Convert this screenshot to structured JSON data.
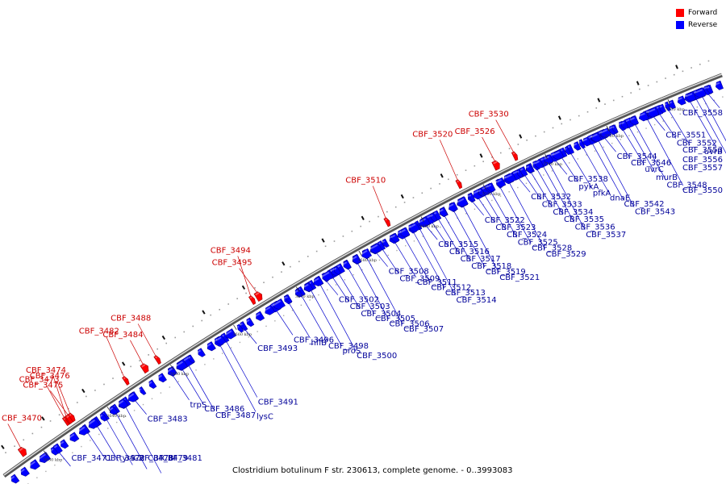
{
  "legend": {
    "forward_label": "Forward",
    "reverse_label": "Reverse",
    "forward_color": "#ff0000",
    "reverse_color": "#0000ff"
  },
  "caption": "Clostridium botulinum F str. 230613, complete genome. - 0..3993083",
  "track_colors": {
    "backbone": "#888888",
    "leader": "#0000cc",
    "leader_fwd": "#cc0000"
  },
  "ticks": [
    {
      "label": "3630 kbp",
      "pos_kbp": 3630
    },
    {
      "label": "3640 kbp",
      "pos_kbp": 3640
    },
    {
      "label": "3650 kbp",
      "pos_kbp": 3650
    },
    {
      "label": "3660 kbp",
      "pos_kbp": 3660
    },
    {
      "label": "3670 kbp",
      "pos_kbp": 3670
    },
    {
      "label": "3680 kbp",
      "pos_kbp": 3680
    },
    {
      "label": "3690 kbp",
      "pos_kbp": 3690
    },
    {
      "label": "3700 kbp",
      "pos_kbp": 3700
    },
    {
      "label": "3710 kbp",
      "pos_kbp": 3710
    },
    {
      "label": "3720 kbp",
      "pos_kbp": 3720
    },
    {
      "label": "3730 kbp",
      "pos_kbp": 3730
    }
  ],
  "forward_genes": [
    {
      "label": "CBF_3470",
      "pos_kbp": 3627.8
    },
    {
      "label": "CBF_3473",
      "pos_kbp": 3634.6
    },
    {
      "label": "CBF_3474",
      "pos_kbp": 3634.9
    },
    {
      "label": "CBF_3475",
      "pos_kbp": 3635.2
    },
    {
      "label": "CBF_3476",
      "pos_kbp": 3635.5
    },
    {
      "label": "CBF_3482",
      "pos_kbp": 3644.0
    },
    {
      "label": "CBF_3484",
      "pos_kbp": 3647.0
    },
    {
      "label": "CBF_3488",
      "pos_kbp": 3649.0
    },
    {
      "label": "CBF_3494",
      "pos_kbp": 3664.0
    },
    {
      "label": "CBF_3495",
      "pos_kbp": 3665.0
    },
    {
      "label": "CBF_3510",
      "pos_kbp": 3685.5
    },
    {
      "label": "CBF_3520",
      "pos_kbp": 3697.0
    },
    {
      "label": "CBF_3526",
      "pos_kbp": 3703.0
    },
    {
      "label": "CBF_3530",
      "pos_kbp": 3706.0
    }
  ],
  "reverse_genes": [
    {
      "label": "CBF_3471",
      "pos_kbp": 3631.5
    },
    {
      "label": "CBF_3472",
      "pos_kbp": 3636.0
    },
    {
      "label": "tyrS-2",
      "pos_kbp": 3637.5
    },
    {
      "label": "CBF_3478",
      "pos_kbp": 3639.0
    },
    {
      "label": "CBF_3479",
      "pos_kbp": 3640.5
    },
    {
      "label": "CBF_3481",
      "pos_kbp": 3642.0
    },
    {
      "label": "CBF_3483",
      "pos_kbp": 3643.5
    },
    {
      "label": "trpS",
      "pos_kbp": 3649.5
    },
    {
      "label": "CBF_3486",
      "pos_kbp": 3651.0
    },
    {
      "label": "CBF_3487",
      "pos_kbp": 3652.0
    },
    {
      "label": "CBF_3491",
      "pos_kbp": 3658.0
    },
    {
      "label": "lysC",
      "pos_kbp": 3657.0
    },
    {
      "label": "CBF_3493",
      "pos_kbp": 3661.0
    },
    {
      "label": "CBF_3496",
      "pos_kbp": 3666.0
    },
    {
      "label": "hflB",
      "pos_kbp": 3668.0
    },
    {
      "label": "CBF_3498",
      "pos_kbp": 3670.0
    },
    {
      "label": "proS",
      "pos_kbp": 3671.5
    },
    {
      "label": "CBF_3500",
      "pos_kbp": 3673.0
    },
    {
      "label": "CBF_3502",
      "pos_kbp": 3674.0
    },
    {
      "label": "CBF_3503",
      "pos_kbp": 3675.0
    },
    {
      "label": "CBF_3504",
      "pos_kbp": 3676.0
    },
    {
      "label": "CBF_3505",
      "pos_kbp": 3677.5
    },
    {
      "label": "CBF_3506",
      "pos_kbp": 3679.0
    },
    {
      "label": "CBF_3507",
      "pos_kbp": 3680.5
    },
    {
      "label": "CBF_3508",
      "pos_kbp": 3682.0
    },
    {
      "label": "CBF_3509",
      "pos_kbp": 3683.0
    },
    {
      "label": "CBF_3511",
      "pos_kbp": 3685.0
    },
    {
      "label": "CBF_3512",
      "pos_kbp": 3686.5
    },
    {
      "label": "CBF_3513",
      "pos_kbp": 3688.0
    },
    {
      "label": "CBF_3514",
      "pos_kbp": 3689.0
    },
    {
      "label": "CBF_3515",
      "pos_kbp": 3690.0
    },
    {
      "label": "CBF_3516",
      "pos_kbp": 3691.0
    },
    {
      "label": "CBF_3517",
      "pos_kbp": 3692.0
    },
    {
      "label": "CBF_3518",
      "pos_kbp": 3693.0
    },
    {
      "label": "CBF_3519",
      "pos_kbp": 3694.5
    },
    {
      "label": "CBF_3521",
      "pos_kbp": 3696.0
    },
    {
      "label": "CBF_3522",
      "pos_kbp": 3697.5
    },
    {
      "label": "CBF_3523",
      "pos_kbp": 3698.5
    },
    {
      "label": "CBF_3524",
      "pos_kbp": 3699.5
    },
    {
      "label": "CBF_3525",
      "pos_kbp": 3700.5
    },
    {
      "label": "CBF_3528",
      "pos_kbp": 3702.0
    },
    {
      "label": "CBF_3529",
      "pos_kbp": 3703.5
    },
    {
      "label": "CBF_3532",
      "pos_kbp": 3705.0
    },
    {
      "label": "CBF_3533",
      "pos_kbp": 3706.0
    },
    {
      "label": "CBF_3534",
      "pos_kbp": 3707.0
    },
    {
      "label": "CBF_3535",
      "pos_kbp": 3708.0
    },
    {
      "label": "CBF_3536",
      "pos_kbp": 3709.0
    },
    {
      "label": "CBF_3537",
      "pos_kbp": 3710.0
    },
    {
      "label": "CBF_3538",
      "pos_kbp": 3711.0
    },
    {
      "label": "pykA",
      "pos_kbp": 3712.0
    },
    {
      "label": "pfkA",
      "pos_kbp": 3713.5
    },
    {
      "label": "dnaE",
      "pos_kbp": 3715.5
    },
    {
      "label": "CBF_3542",
      "pos_kbp": 3717.0
    },
    {
      "label": "CBF_3543",
      "pos_kbp": 3718.0
    },
    {
      "label": "CBF_3544",
      "pos_kbp": 3719.0
    },
    {
      "label": "CBF_3546",
      "pos_kbp": 3720.5
    },
    {
      "label": "uvrC",
      "pos_kbp": 3722.0
    },
    {
      "label": "murB",
      "pos_kbp": 3723.0
    },
    {
      "label": "CBF_3548",
      "pos_kbp": 3724.0
    },
    {
      "label": "CBF_3550",
      "pos_kbp": 3726.0
    },
    {
      "label": "CBF_3551",
      "pos_kbp": 3727.0
    },
    {
      "label": "CBF_3552",
      "pos_kbp": 3728.0
    },
    {
      "label": "CBF_3553",
      "pos_kbp": 3729.5
    },
    {
      "label": "uvrB",
      "pos_kbp": 3733.0
    },
    {
      "label": "CBF_3556",
      "pos_kbp": 3734.0
    },
    {
      "label": "CBF_3557",
      "pos_kbp": 3735.0
    },
    {
      "label": "CBF_3558",
      "pos_kbp": 3736.0
    }
  ]
}
